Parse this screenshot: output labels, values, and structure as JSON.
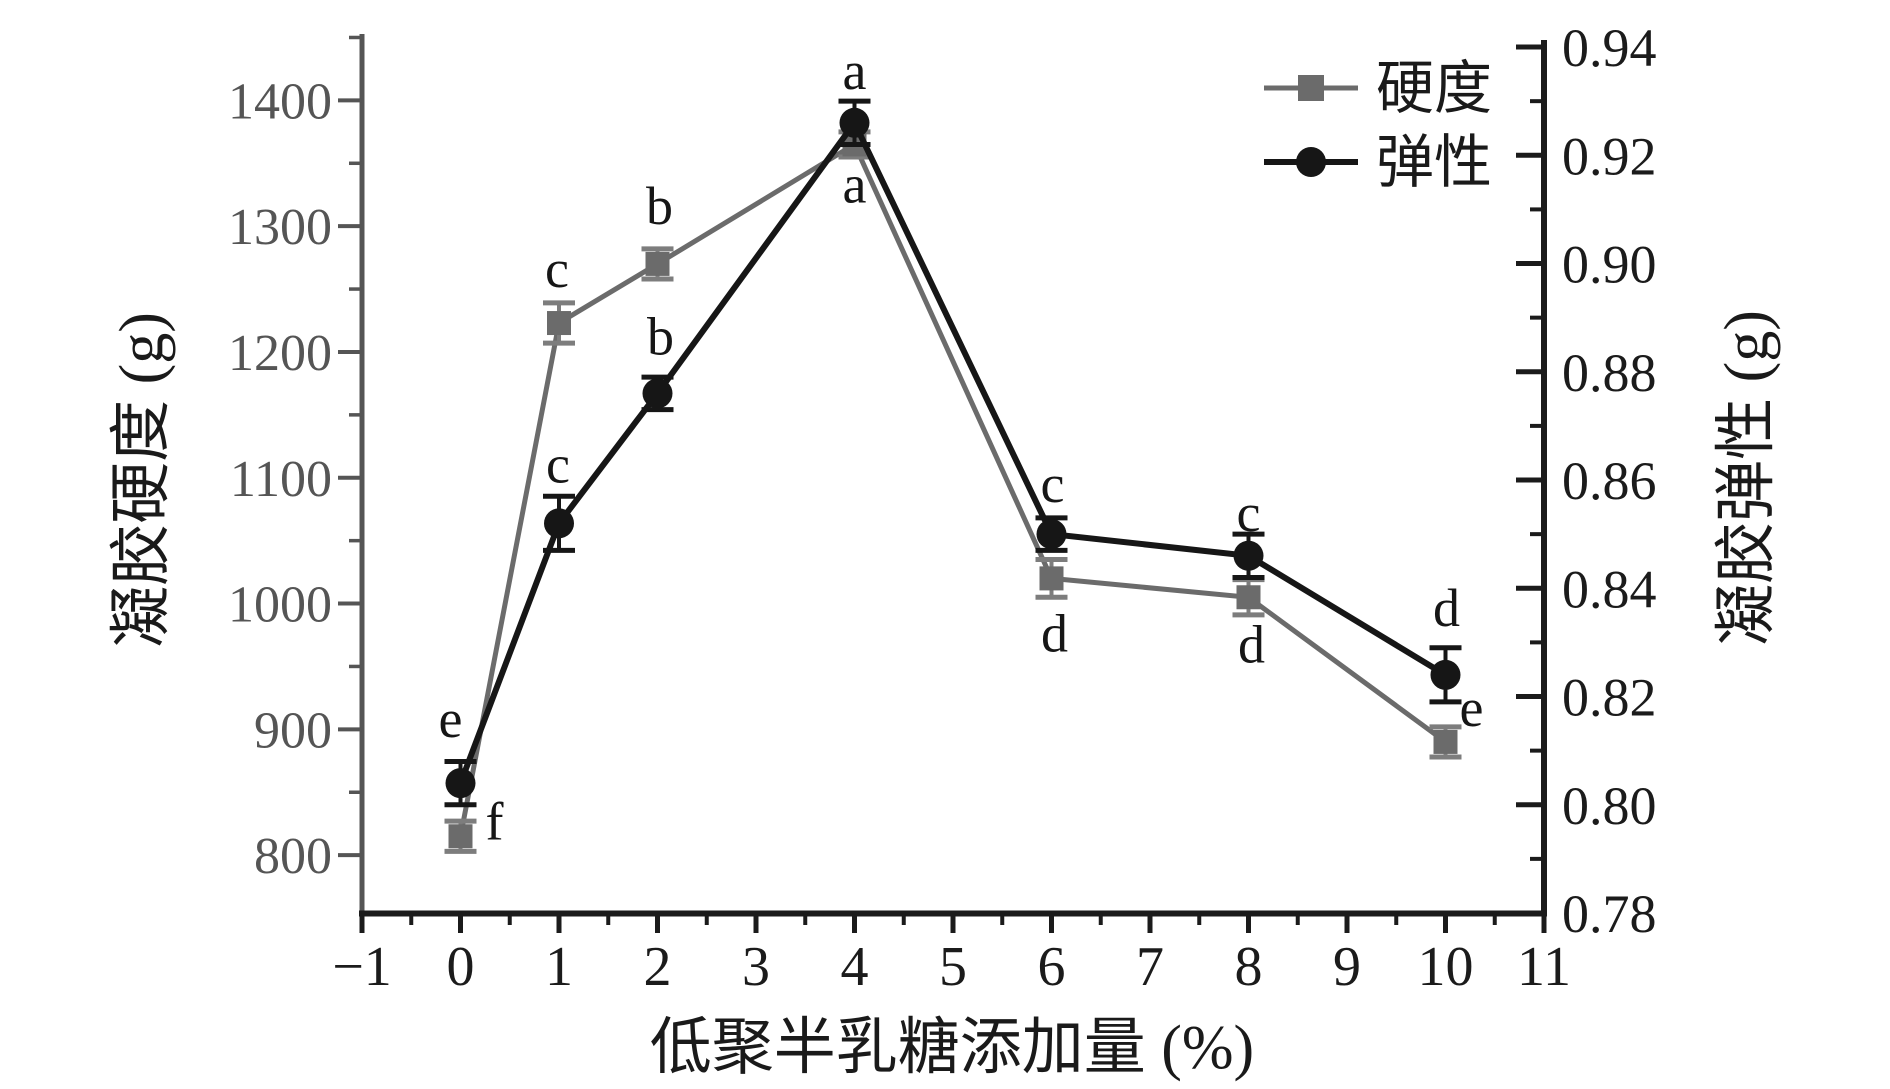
{
  "figure": {
    "legend": {
      "items": [
        {
          "label": "硬度",
          "marker": "square"
        },
        {
          "label": "弹性",
          "marker": "circle"
        }
      ],
      "position": "top-right"
    }
  },
  "chart_data": {
    "type": "line",
    "title": "",
    "xlabel": "低聚半乳糖添加量 (%)",
    "x": [
      0,
      1,
      2,
      4,
      6,
      8,
      10
    ],
    "xlim": [
      -1,
      11
    ],
    "x_major_ticks": [
      -1,
      0,
      1,
      2,
      3,
      4,
      5,
      6,
      7,
      8,
      9,
      10,
      11
    ],
    "grid": false,
    "legend_position": "top-right",
    "left_axis": {
      "label": "凝胶硬度 (g)",
      "ticks": [
        800,
        900,
        1000,
        1100,
        1200,
        1300,
        1400
      ],
      "range": [
        754,
        1448
      ],
      "color": "#555555"
    },
    "right_axis": {
      "label": "凝胶弹性 (g)",
      "ticks": [
        0.78,
        0.8,
        0.82,
        0.84,
        0.86,
        0.88,
        0.9,
        0.92,
        0.94
      ],
      "range": [
        0.78,
        0.9413
      ],
      "color": "#1b1b1b"
    },
    "series": [
      {
        "name": "硬度",
        "axis": "left",
        "marker": "square",
        "color": "#6b6b6b",
        "errorbar_color": "#7d7d7d",
        "values": [
          815,
          1223,
          1270,
          1365,
          1020,
          1005,
          890
        ],
        "errors": [
          12,
          16,
          12,
          10,
          15,
          14,
          12
        ],
        "letters": [
          "f",
          "c",
          "b",
          "a",
          "d",
          "d",
          "e"
        ],
        "letter_dx": [
          34,
          -2,
          2,
          0,
          3,
          3,
          26
        ],
        "letter_dy": [
          -16,
          -55,
          -59,
          39,
          54,
          46,
          -35
        ]
      },
      {
        "name": "弹性",
        "axis": "right",
        "marker": "circle",
        "color": "#161616",
        "errorbar_color": "#161616",
        "values": [
          0.804,
          0.852,
          0.876,
          0.926,
          0.85,
          0.846,
          0.824
        ],
        "errors": [
          0.004,
          0.005,
          0.003,
          0.004,
          0.003,
          0.004,
          0.005
        ],
        "letters": [
          "e",
          "c",
          "b",
          "a",
          "c",
          "c",
          "d"
        ],
        "letter_dx": [
          -10,
          -1,
          3,
          0,
          1,
          0,
          1
        ],
        "letter_dy": [
          -65,
          -60,
          -58,
          -53,
          -51,
          -44,
          -68
        ]
      }
    ]
  }
}
